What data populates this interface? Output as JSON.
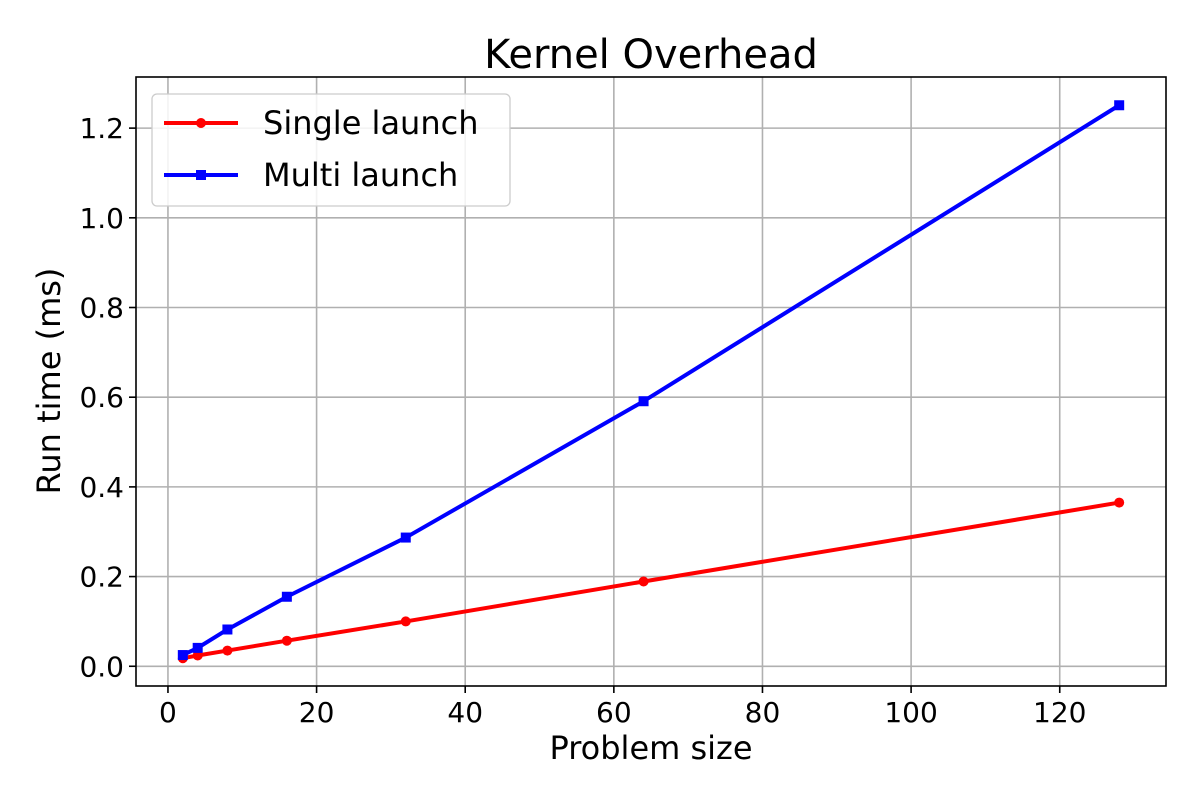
{
  "chart_data": {
    "type": "line",
    "title": "Kernel Overhead",
    "xlabel": "Problem size",
    "ylabel": "Run time (ms)",
    "xlim": [
      -4.3,
      134.3
    ],
    "ylim": [
      -0.044,
      1.314
    ],
    "xticks": [
      0,
      20,
      40,
      60,
      80,
      100,
      120
    ],
    "yticks": [
      0.0,
      0.2,
      0.4,
      0.6,
      0.8,
      1.0,
      1.2
    ],
    "xtick_labels": [
      "0",
      "20",
      "40",
      "60",
      "80",
      "100",
      "120"
    ],
    "ytick_labels": [
      "0.0",
      "0.2",
      "0.4",
      "0.6",
      "0.8",
      "1.0",
      "1.2"
    ],
    "grid": true,
    "legend_position": "top-left",
    "x": [
      2,
      4,
      8,
      16,
      32,
      64,
      128
    ],
    "series": [
      {
        "name": "Single launch",
        "color": "#ff0000",
        "marker": "circle",
        "values": [
          0.018,
          0.024,
          0.035,
          0.057,
          0.1,
          0.189,
          0.365
        ]
      },
      {
        "name": "Multi launch",
        "color": "#0000ff",
        "marker": "square",
        "values": [
          0.025,
          0.041,
          0.082,
          0.155,
          0.287,
          0.591,
          1.251
        ]
      }
    ]
  }
}
